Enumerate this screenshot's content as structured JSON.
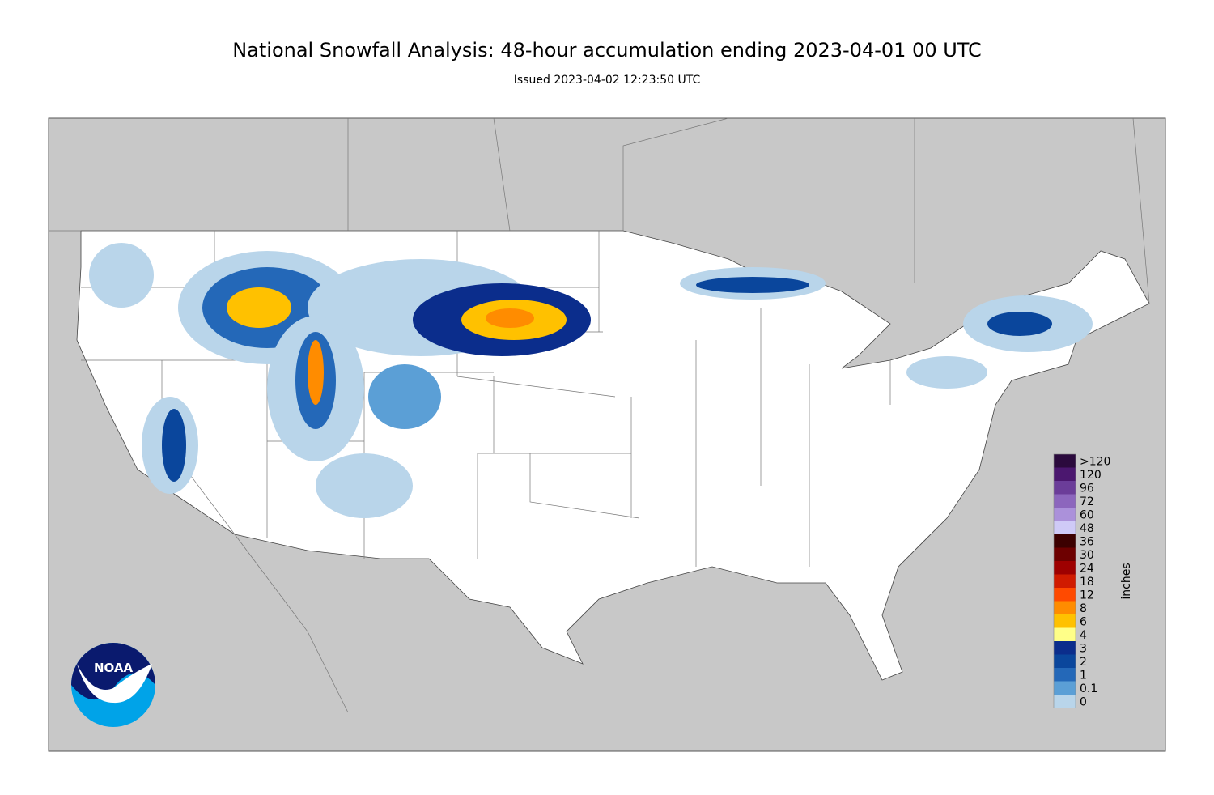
{
  "header": {
    "title": "National Snowfall Analysis: 48-hour accumulation ending 2023-04-01 00 UTC",
    "subtitle": "Issued 2023-04-02 12:23:50 UTC"
  },
  "legend": {
    "unit": "inches",
    "items": [
      {
        "label": ">120",
        "color": "#2b0a3d"
      },
      {
        "label": "120",
        "color": "#4b176f"
      },
      {
        "label": "96",
        "color": "#6b3d99"
      },
      {
        "label": "72",
        "color": "#8c66bd"
      },
      {
        "label": "60",
        "color": "#ab91da"
      },
      {
        "label": "48",
        "color": "#cfcaf7"
      },
      {
        "label": "36",
        "color": "#3c0000"
      },
      {
        "label": "30",
        "color": "#6d0000"
      },
      {
        "label": "24",
        "color": "#9e0000"
      },
      {
        "label": "18",
        "color": "#d01b00"
      },
      {
        "label": "12",
        "color": "#ff4a00"
      },
      {
        "label": "8",
        "color": "#ff8c00"
      },
      {
        "label": "6",
        "color": "#ffc100"
      },
      {
        "label": "4",
        "color": "#ffff88"
      },
      {
        "label": "3",
        "color": "#0b2d8c"
      },
      {
        "label": "2",
        "color": "#0a469c"
      },
      {
        "label": "1",
        "color": "#2468b8"
      },
      {
        "label": "0.1",
        "color": "#5b9fd6"
      },
      {
        "label": "0",
        "color": "#b9d5ea"
      }
    ]
  },
  "logo": {
    "text": "NOAA"
  }
}
